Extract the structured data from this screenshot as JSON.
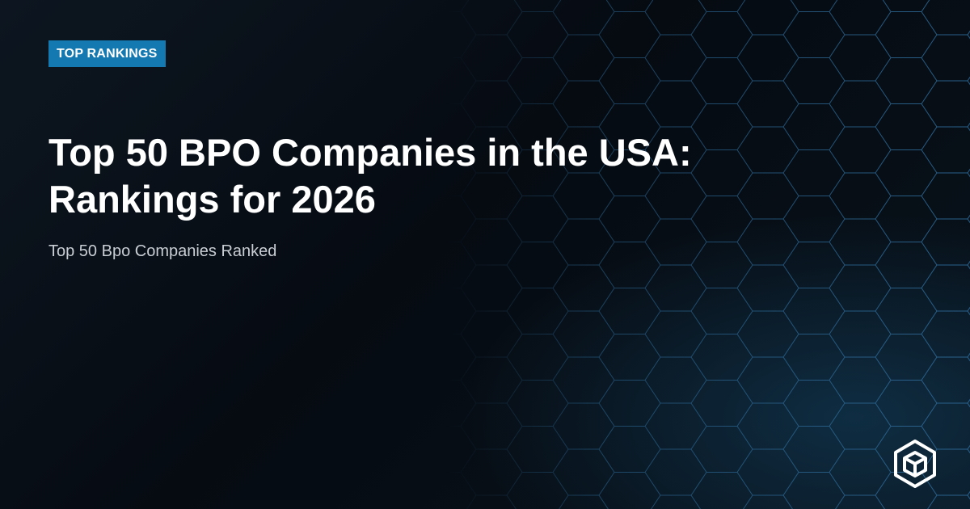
{
  "badge": "TOP RANKINGS",
  "title": {
    "lines": [
      "Top 50 BPO Companies in the USA:",
      "Rankings for 2026"
    ]
  },
  "subtitle": "Top 50 Bpo Companies Ranked"
}
